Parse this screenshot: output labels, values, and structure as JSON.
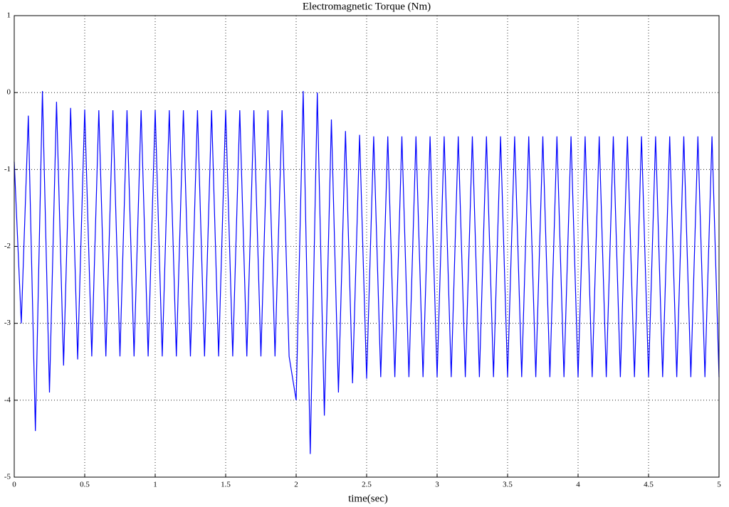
{
  "chart_data": {
    "type": "line",
    "title": "Electromagnetic Torque (Nm)",
    "x_label": "time(sec)",
    "x": [
      0,
      0.05,
      0.1,
      0.15,
      0.2,
      0.25,
      0.3,
      0.35,
      0.4,
      0.45,
      0.5,
      0.55,
      0.6,
      0.65,
      0.7,
      0.75,
      0.8,
      0.85,
      0.9,
      0.95,
      1,
      1.05,
      1.1,
      1.15,
      1.2,
      1.25,
      1.3,
      1.35,
      1.4,
      1.45,
      1.5,
      1.55,
      1.6,
      1.65,
      1.7,
      1.75,
      1.8,
      1.85,
      1.9,
      1.95,
      2,
      2.05,
      2.1,
      2.15,
      2.2,
      2.25,
      2.3,
      2.35,
      2.4,
      2.45,
      2.5,
      2.55,
      2.6,
      2.65,
      2.7,
      2.75,
      2.8,
      2.85,
      2.9,
      2.95,
      3,
      3.05,
      3.1,
      3.15,
      3.2,
      3.25,
      3.3,
      3.35,
      3.4,
      3.45,
      3.5,
      3.55,
      3.6,
      3.65,
      3.7,
      3.75,
      3.8,
      3.85,
      3.9,
      3.95,
      4,
      4.05,
      4.1,
      4.15,
      4.2,
      4.25,
      4.3,
      4.35,
      4.4,
      4.45,
      4.5,
      4.55,
      4.6,
      4.65,
      4.7,
      4.75,
      4.8,
      4.85,
      4.9,
      4.95,
      5
    ],
    "series": [
      {
        "color": "#0000ff",
        "values": [
          -0.9,
          -3.0,
          -0.3,
          -4.4,
          0.02,
          -3.9,
          -0.12,
          -3.55,
          -0.2,
          -3.47,
          -0.22,
          -3.43,
          -0.23,
          -3.43,
          -0.23,
          -3.43,
          -0.23,
          -3.43,
          -0.23,
          -3.43,
          -0.23,
          -3.43,
          -0.23,
          -3.43,
          -0.23,
          -3.43,
          -0.23,
          -3.43,
          -0.23,
          -3.43,
          -0.23,
          -3.43,
          -0.23,
          -3.43,
          -0.23,
          -3.43,
          -0.23,
          -3.43,
          -0.23,
          -3.43,
          -4.0,
          0.02,
          -4.7,
          0.0,
          -4.2,
          -0.35,
          -3.9,
          -0.5,
          -3.78,
          -0.55,
          -3.72,
          -0.57,
          -3.7,
          -0.57,
          -3.7,
          -0.57,
          -3.7,
          -0.57,
          -3.7,
          -0.57,
          -3.7,
          -0.57,
          -3.7,
          -0.57,
          -3.7,
          -0.57,
          -3.7,
          -0.57,
          -3.7,
          -0.57,
          -3.7,
          -0.57,
          -3.7,
          -0.57,
          -3.7,
          -0.57,
          -3.7,
          -0.57,
          -3.7,
          -0.57,
          -3.7,
          -0.57,
          -3.7,
          -0.57,
          -3.7,
          -0.57,
          -3.7,
          -0.57,
          -3.7,
          -0.57,
          -3.7,
          -0.57,
          -3.7,
          -0.57,
          -3.7,
          -0.57,
          -3.7,
          -0.57,
          -3.7,
          -0.57,
          -3.7
        ]
      }
    ],
    "xlim": [
      0,
      5
    ],
    "xticks": [
      0,
      0.5,
      1,
      1.5,
      2,
      2.5,
      3,
      3.5,
      4,
      4.5,
      5
    ],
    "ylim": [
      -5,
      1
    ],
    "yticks": [
      -5,
      -4,
      -3,
      -2,
      -1,
      0,
      1
    ],
    "grid": true
  }
}
